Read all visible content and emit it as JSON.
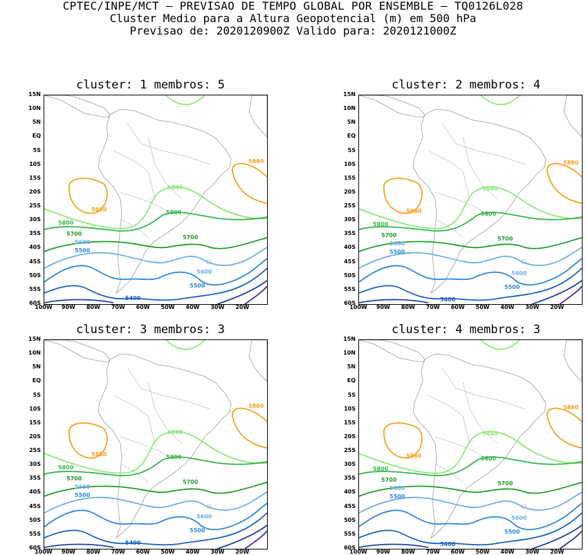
{
  "header": {
    "line1": "CPTEC/INPE/MCT – PREVISAO DE TEMPO GLOBAL POR ENSEMBLE – TQ0126L028",
    "line2": "Cluster Medio para a Altura Geopotencial (m) em 500 hPa",
    "line3": "Previsao de: 2020120900Z    Valido para: 2020121000Z"
  },
  "axes": {
    "lat_labels": [
      "15N",
      "10N",
      "5N",
      "EQ",
      "5S",
      "10S",
      "15S",
      "20S",
      "25S",
      "30S",
      "35S",
      "40S",
      "45S",
      "50S",
      "55S",
      "60S"
    ],
    "lon_labels": [
      "100W",
      "90W",
      "80W",
      "70W",
      "60W",
      "50W",
      "40W",
      "30W",
      "20W"
    ]
  },
  "colors": {
    "5880": "#f5a11e",
    "5840": "#8ee87a",
    "5800": "#35b54a",
    "5700": "#1f9a2c",
    "5600": "#6aaee6",
    "5500": "#2e86d6",
    "5400": "#1a5fbf",
    "5300": "#1f3fa0",
    "5200": "#3a2c9a",
    "coast": "#9a9a9a"
  },
  "panels": [
    {
      "title": "cluster: 1   membros: 5",
      "labels": {
        "l5880a": "5880",
        "l5880b": "5880",
        "l5840": "5840",
        "l5800a": "5800",
        "l5800b": "5800",
        "l5700a": "5700",
        "l5700b": "5700",
        "l5600a": "5600",
        "l5600b": "5600",
        "l5500a": "5500",
        "l5500b": "5500",
        "l5400": "5400"
      }
    },
    {
      "title": "cluster: 2   membros: 4",
      "labels": {
        "l5880a": "5880",
        "l5880b": "5880",
        "l5840": "5840",
        "l5800a": "5800",
        "l5800b": "5800",
        "l5700a": "5700",
        "l5700b": "5700",
        "l5600a": "5600",
        "l5600b": "5600",
        "l5500a": "5500",
        "l5500b": "5500",
        "l5400": "5400"
      }
    },
    {
      "title": "cluster: 3   membros: 3",
      "labels": {
        "l5880a": "5880",
        "l5880b": "5880",
        "l5840": "5840",
        "l5800a": "5800",
        "l5800b": "5800",
        "l5700a": "5700",
        "l5700b": "5700",
        "l5600a": "5600",
        "l5600b": "5600",
        "l5500a": "5500",
        "l5500b": "5500",
        "l5400": "5400"
      }
    },
    {
      "title": "cluster: 4   membros: 3",
      "labels": {
        "l5880a": "5880",
        "l5880b": "5880",
        "l5840": "5840",
        "l5800a": "5800",
        "l5800b": "5800",
        "l5700a": "5700",
        "l5700b": "5700",
        "l5600a": "5600",
        "l5600b": "5600",
        "l5500a": "5500",
        "l5500b": "5500",
        "l5400": "5400"
      }
    }
  ]
}
